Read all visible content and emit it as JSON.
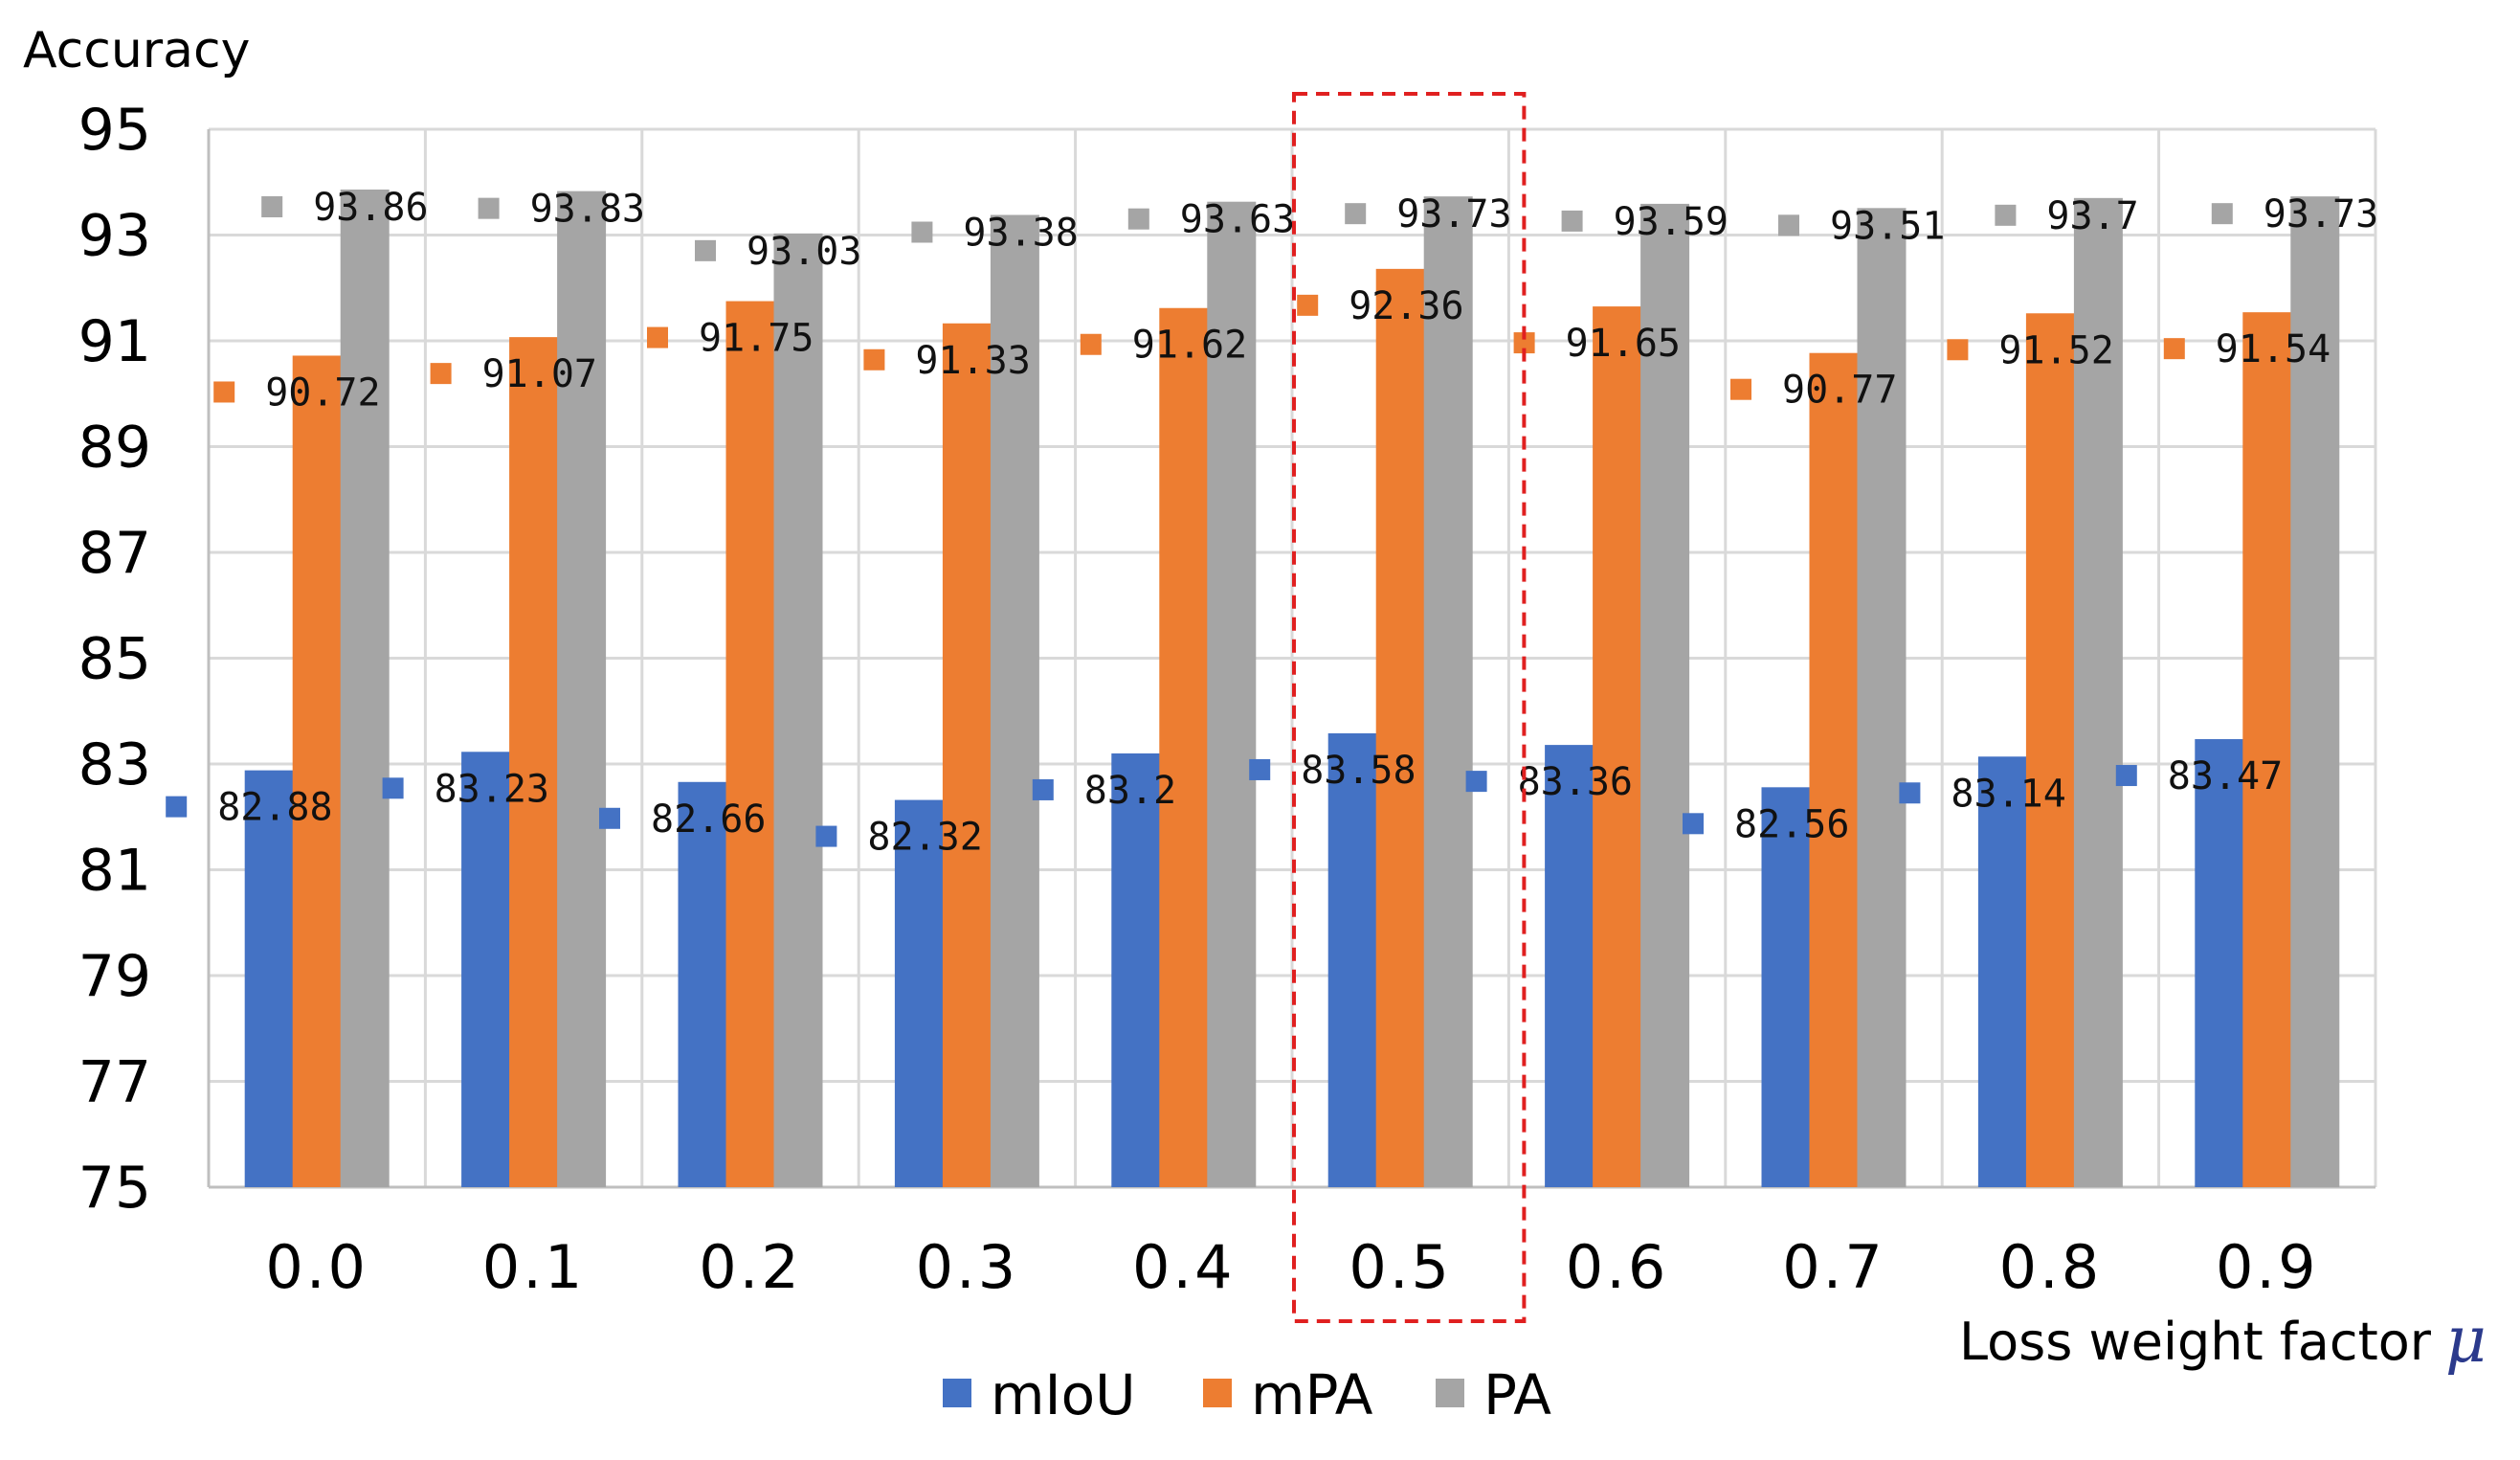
{
  "chart_data": {
    "type": "bar",
    "title": "",
    "ylabel": "Accuracy",
    "xlabel": "Loss weight factor",
    "xlabel_symbol": "μ",
    "ylim": [
      75,
      95
    ],
    "yticks": [
      "75",
      "77",
      "79",
      "81",
      "83",
      "85",
      "87",
      "89",
      "91",
      "93",
      "95"
    ],
    "grid": true,
    "legend_position": "bottom",
    "highlight_category": "0.5",
    "categories": [
      "0.0",
      "0.1",
      "0.2",
      "0.3",
      "0.4",
      "0.5",
      "0.6",
      "0.7",
      "0.8",
      "0.9"
    ],
    "series": [
      {
        "name": "mIoU",
        "color": "#4472C4",
        "values": [
          82.88,
          83.23,
          82.66,
          82.32,
          83.2,
          83.58,
          83.36,
          82.56,
          83.14,
          83.47
        ],
        "labels": [
          "82.88",
          "83.23",
          "82.66",
          "82.32",
          "83.2",
          "83.58",
          "83.36",
          "82.56",
          "83.14",
          "83.47"
        ]
      },
      {
        "name": "mPA",
        "color": "#ED7D31",
        "values": [
          90.72,
          91.07,
          91.75,
          91.33,
          91.62,
          92.36,
          91.65,
          90.77,
          91.52,
          91.54
        ],
        "labels": [
          "90.72",
          "91.07",
          "91.75",
          "91.33",
          "91.62",
          "92.36",
          "91.65",
          "90.77",
          "91.52",
          "91.54"
        ]
      },
      {
        "name": "PA",
        "color": "#A5A5A5",
        "values": [
          93.86,
          93.83,
          93.03,
          93.38,
          93.63,
          93.73,
          93.59,
          93.51,
          93.7,
          93.73
        ],
        "labels": [
          "93.86",
          "93.83",
          "93.03",
          "93.38",
          "93.63",
          "93.73",
          "93.59",
          "93.51",
          "93.7",
          "93.73"
        ]
      }
    ]
  }
}
